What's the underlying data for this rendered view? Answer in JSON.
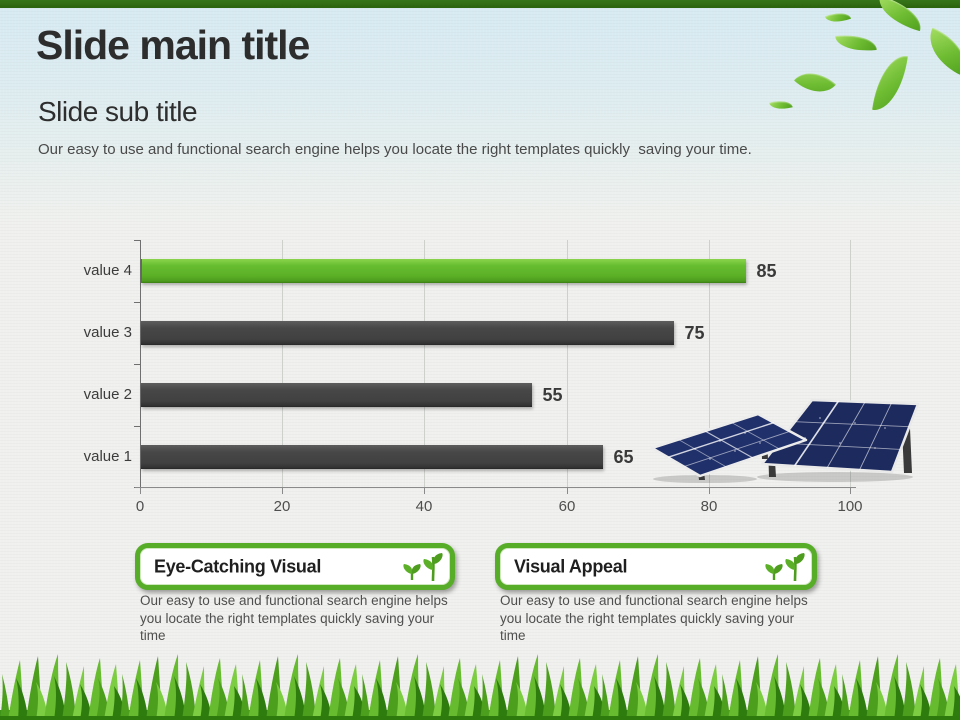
{
  "slide": {
    "title": "Slide main title",
    "subtitle": "Slide sub title",
    "description": "Our easy to use and functional search engine helps you locate the right templates quickly  saving your time."
  },
  "chart_data": {
    "type": "bar",
    "orientation": "horizontal",
    "title": "",
    "categories": [
      "value 1",
      "value 2",
      "value 3",
      "value 4"
    ],
    "values": [
      65,
      55,
      75,
      85
    ],
    "data_labels": [
      "65",
      "55",
      "75",
      "85"
    ],
    "xlim": [
      0,
      100
    ],
    "x_ticks": [
      "0",
      "20",
      "40",
      "60",
      "80",
      "100"
    ],
    "grid": true,
    "legend": false,
    "bar_colors": {
      "value 1": "#454545",
      "value 2": "#454545",
      "value 3": "#454545",
      "value 4": "#5fb32a"
    }
  },
  "callouts": [
    {
      "title": "Eye-Catching Visual",
      "icon": "sprout-icon",
      "description": "Our easy to use and functional search engine helps you locate the right templates quickly saving your time"
    },
    {
      "title": "Visual Appeal",
      "icon": "sprout-icon",
      "description": "Our easy to use and functional search engine helps you locate the right templates quickly saving your time"
    }
  ],
  "decorations": {
    "top_right": "green-leaves",
    "chart_right": "solar-panels",
    "bottom": "grass"
  },
  "colors": {
    "top_bar_green": "#2a640e",
    "accent_green": "#57ac28",
    "bar_green": "#5fb32a",
    "bar_dark": "#454545",
    "header_blue": "#d7eaf2",
    "background": "#f0f0ee",
    "solar_panel_blue": "#1d2a5e",
    "grass_green": "#4c9e1d"
  }
}
